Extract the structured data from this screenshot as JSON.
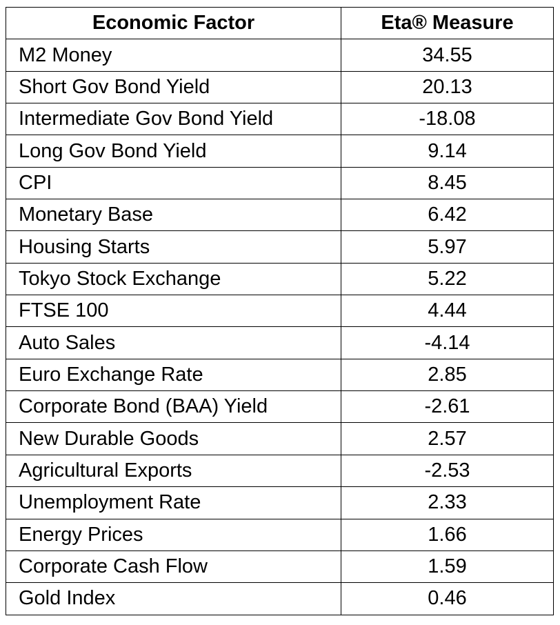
{
  "table": {
    "headers": [
      "Economic Factor",
      "Eta® Measure"
    ],
    "rows": [
      {
        "factor": "M2 Money",
        "value": "34.55"
      },
      {
        "factor": "Short Gov Bond Yield",
        "value": "20.13"
      },
      {
        "factor": "Intermediate Gov Bond Yield",
        "value": "-18.08"
      },
      {
        "factor": "Long Gov Bond Yield",
        "value": "9.14"
      },
      {
        "factor": "CPI",
        "value": "8.45"
      },
      {
        "factor": "Monetary Base",
        "value": "6.42"
      },
      {
        "factor": "Housing Starts",
        "value": "5.97"
      },
      {
        "factor": "Tokyo Stock Exchange",
        "value": "5.22"
      },
      {
        "factor": "FTSE 100",
        "value": "4.44"
      },
      {
        "factor": "Auto Sales",
        "value": "-4.14"
      },
      {
        "factor": "Euro Exchange Rate",
        "value": "2.85"
      },
      {
        "factor": "Corporate Bond (BAA) Yield",
        "value": "-2.61"
      },
      {
        "factor": "New Durable Goods",
        "value": "2.57"
      },
      {
        "factor": "Agricultural Exports",
        "value": "-2.53"
      },
      {
        "factor": "Unemployment Rate",
        "value": "2.33"
      },
      {
        "factor": "Energy Prices",
        "value": "1.66"
      },
      {
        "factor": "Corporate Cash Flow",
        "value": "1.59"
      },
      {
        "factor": "Gold Index",
        "value": "0.46"
      }
    ]
  }
}
